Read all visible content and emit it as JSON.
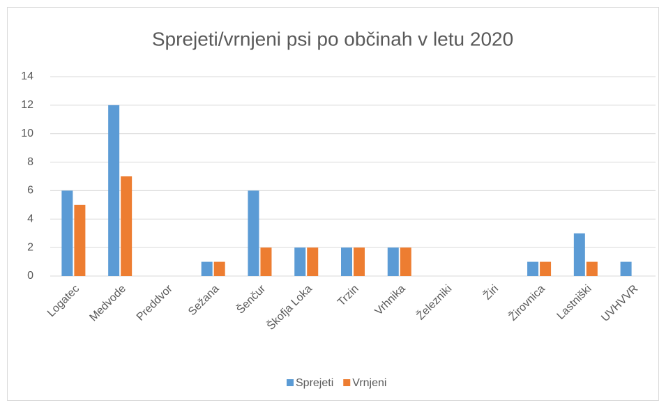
{
  "chart_data": {
    "type": "bar",
    "title": "Sprejeti/vrnjeni psi po občinah v letu 2020",
    "categories": [
      "Logatec",
      "Medvode",
      "Preddvor",
      "Sežana",
      "Šenčur",
      "Škofja Loka",
      "Trzin",
      "Vrhnika",
      "Železniki",
      "Žiri",
      "Žirovnica",
      "Lastniški",
      "UVHVVR"
    ],
    "series": [
      {
        "name": "Sprejeti",
        "color": "#5b9bd5",
        "values": [
          6,
          12,
          0,
          1,
          6,
          2,
          2,
          2,
          0,
          0,
          1,
          3,
          1
        ]
      },
      {
        "name": "Vrnjeni",
        "color": "#ed7d31",
        "values": [
          5,
          7,
          0,
          1,
          2,
          2,
          2,
          2,
          0,
          0,
          1,
          1,
          0
        ]
      }
    ],
    "ylim": [
      0,
      14
    ],
    "yticks": [
      0,
      2,
      4,
      6,
      8,
      10,
      12,
      14
    ],
    "grid": true,
    "legend": "bottom"
  }
}
